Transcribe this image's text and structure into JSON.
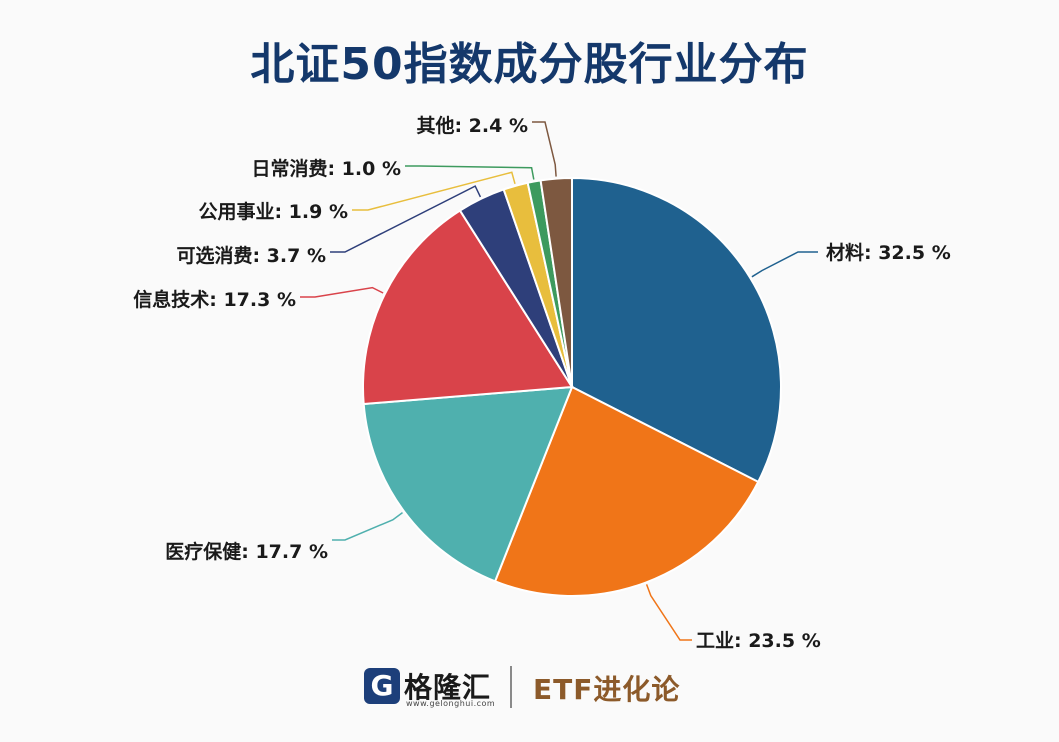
{
  "chart_data": {
    "type": "pie",
    "title": "北证50指数成分股行业分布",
    "slices": [
      {
        "label": "材料",
        "value": 32.5,
        "text": "材料: 32.5 %",
        "color": "#1f618f"
      },
      {
        "label": "工业",
        "value": 23.5,
        "text": "工业: 23.5 %",
        "color": "#f07518"
      },
      {
        "label": "医疗保健",
        "value": 17.7,
        "text": "医疗保健: 17.7 %",
        "color": "#4fb0ae"
      },
      {
        "label": "信息技术",
        "value": 17.3,
        "text": "信息技术: 17.3 %",
        "color": "#d9434a"
      },
      {
        "label": "可选消费",
        "value": 3.7,
        "text": "可选消费: 3.7 %",
        "color": "#2e3f7a"
      },
      {
        "label": "公用事业",
        "value": 1.9,
        "text": "公用事业: 1.9 %",
        "color": "#e8be3d"
      },
      {
        "label": "日常消费",
        "value": 1.0,
        "text": "日常消费: 1.0 %",
        "color": "#3d9a5e"
      },
      {
        "label": "其他",
        "value": 2.4,
        "text": "其他: 2.4 %",
        "color": "#7d5840"
      }
    ],
    "start_angle": "12 o'clock",
    "direction": "clockwise",
    "legend": "none"
  },
  "footer": {
    "logo_letter": "G",
    "brand_name": "格隆汇",
    "brand_url": "www.gelonghui.com",
    "partner": "ETF进化论"
  },
  "colors": {
    "title": "#14386b",
    "background": "#fafafa"
  }
}
